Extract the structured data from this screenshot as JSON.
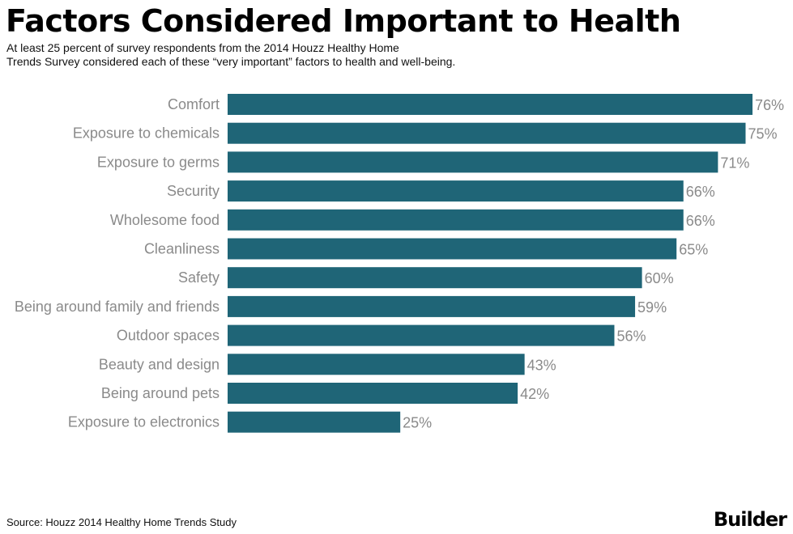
{
  "header": {
    "title": "Factors Considered Important to Health",
    "subtitle_line1": "At least 25 percent of survey respondents from the 2014 Houzz Healthy Home",
    "subtitle_line2": "Trends Survey considered each of these “very important” factors to health and well-being."
  },
  "footer": {
    "source": "Source: Houzz 2014 Healthy Home Trends Study",
    "brand": "Builder"
  },
  "colors": {
    "bar": "#1f6577",
    "label": "#8a8a8a"
  },
  "chart_data": {
    "type": "bar",
    "orientation": "horizontal",
    "title": "Factors Considered Important to Health",
    "subtitle": "At least 25 percent of survey respondents from the 2014 Houzz Healthy Home Trends Survey considered each of these “very important” factors to health and well-being.",
    "xlabel": "",
    "ylabel": "",
    "xlim": [
      0,
      76
    ],
    "grid": false,
    "legend": "none",
    "unit": "%",
    "categories": [
      "Comfort",
      "Exposure to chemicals",
      "Exposure to germs",
      "Security",
      "Wholesome food",
      "Cleanliness",
      "Safety",
      "Being around family and friends",
      "Outdoor spaces",
      "Beauty and design",
      "Being around pets",
      "Exposure to electronics"
    ],
    "values": [
      76,
      75,
      71,
      66,
      66,
      65,
      60,
      59,
      56,
      43,
      42,
      25
    ],
    "data_labels": [
      "76%",
      "75%",
      "71%",
      "66%",
      "66%",
      "65%",
      "60%",
      "59%",
      "56%",
      "43%",
      "42%",
      "25%"
    ],
    "source": "Source: Houzz 2014 Healthy Home Trends Study"
  }
}
